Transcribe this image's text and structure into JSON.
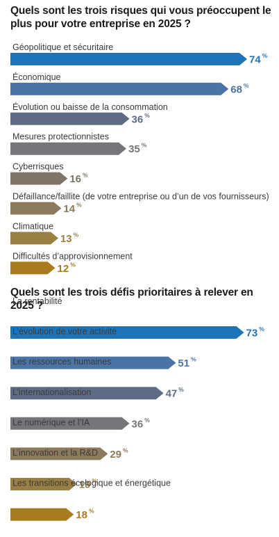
{
  "chart_data": [
    {
      "type": "bar",
      "title": "Quels sont les trois risques qui vous préoccupent le plus pour votre entreprise en 2025 ?",
      "categories": [
        "Géopolitique et sécuritaire",
        "Économique",
        "Évolution ou baisse de la consommation",
        "Mesures protectionnistes",
        "Cyberrisques",
        "Défaillance/faillite (de votre entreprise ou d’un de vos fournisseurs)",
        "Climatique",
        "Difficultés d’approvisionnement"
      ],
      "values": [
        74,
        68,
        36,
        35,
        16,
        14,
        13,
        12
      ],
      "unit": "%",
      "colors": [
        "#1f73b7",
        "#4a73a6",
        "#5e6b85",
        "#76767a",
        "#7e7467",
        "#8c7a5c",
        "#9a7f44",
        "#a87c1e"
      ]
    },
    {
      "type": "bar",
      "title": "Quels sont les trois défis prioritaires à relever en 2025 ?",
      "categories": [
        "La rentabilité",
        "L’évolution de votre activité",
        "Les ressources humaines",
        "L’internationalisation",
        "Le numérique et l’IA",
        "L’innovation et la R&D",
        "Les transitions écologique et énergétique"
      ],
      "values": [
        73,
        51,
        47,
        36,
        29,
        19,
        18
      ],
      "unit": "%",
      "colors": [
        "#1f73b7",
        "#4a73a6",
        "#5e6b85",
        "#76767a",
        "#8c7a5c",
        "#9a7f44",
        "#a87c1e"
      ]
    }
  ]
}
